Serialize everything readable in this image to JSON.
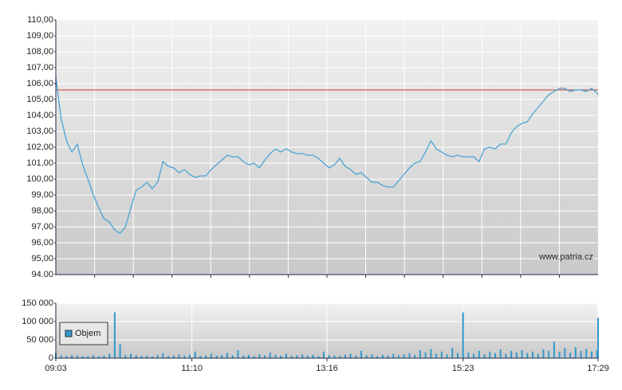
{
  "chart_data": [
    {
      "type": "line",
      "x": [
        "09:03",
        "09:08",
        "09:13",
        "09:18",
        "09:23",
        "09:28",
        "09:33",
        "09:38",
        "09:43",
        "09:48",
        "09:53",
        "09:58",
        "10:03",
        "10:08",
        "10:13",
        "10:18",
        "10:23",
        "10:28",
        "10:33",
        "10:38",
        "10:43",
        "10:48",
        "10:53",
        "10:58",
        "11:03",
        "11:08",
        "11:13",
        "11:18",
        "11:23",
        "11:28",
        "11:33",
        "11:38",
        "11:43",
        "11:48",
        "11:53",
        "11:58",
        "12:03",
        "12:08",
        "12:13",
        "12:18",
        "12:23",
        "12:28",
        "12:33",
        "12:38",
        "12:43",
        "12:48",
        "12:53",
        "12:58",
        "13:03",
        "13:08",
        "13:13",
        "13:18",
        "13:23",
        "13:28",
        "13:33",
        "13:38",
        "13:43",
        "13:48",
        "13:53",
        "13:58",
        "14:03",
        "14:08",
        "14:13",
        "14:18",
        "14:23",
        "14:28",
        "14:33",
        "14:38",
        "14:43",
        "14:48",
        "14:53",
        "14:58",
        "15:03",
        "15:08",
        "15:13",
        "15:18",
        "15:23",
        "15:28",
        "15:33",
        "15:38",
        "15:43",
        "15:48",
        "15:53",
        "15:58",
        "16:03",
        "16:08",
        "16:13",
        "16:18",
        "16:23",
        "16:28",
        "16:33",
        "16:38",
        "16:43",
        "16:48",
        "16:53",
        "16:58",
        "17:03",
        "17:08",
        "17:13",
        "17:18",
        "17:23",
        "17:28",
        "17:29"
      ],
      "values": [
        106.4,
        103.8,
        102.4,
        101.7,
        102.2,
        100.9,
        100,
        99,
        98.2,
        97.5,
        97.3,
        96.8,
        96.6,
        97,
        98.2,
        99.3,
        99.5,
        99.8,
        99.4,
        99.8,
        101.1,
        100.8,
        100.7,
        100.4,
        100.6,
        100.3,
        100.1,
        100.2,
        100.2,
        100.6,
        100.9,
        101.2,
        101.5,
        101.4,
        101.4,
        101.1,
        100.9,
        101,
        100.7,
        101.2,
        101.6,
        101.9,
        101.7,
        101.9,
        101.7,
        101.6,
        101.6,
        101.5,
        101.5,
        101.3,
        101,
        100.7,
        100.9,
        101.3,
        100.8,
        100.6,
        100.3,
        100.4,
        100.1,
        99.8,
        99.8,
        99.6,
        99.5,
        99.5,
        99.9,
        100.3,
        100.7,
        101,
        101.1,
        101.7,
        102.4,
        101.9,
        101.7,
        101.5,
        101.4,
        101.5,
        101.4,
        101.4,
        101.4,
        101.1,
        101.9,
        102,
        101.9,
        102.2,
        102.2,
        102.9,
        103.3,
        103.5,
        103.6,
        104.1,
        104.5,
        104.9,
        105.3,
        105.5,
        105.7,
        105.7,
        105.5,
        105.6,
        105.6,
        105.5,
        105.7,
        105.4,
        105.3
      ],
      "color": "#4aa3d5",
      "xlim": [
        "09:03",
        "17:29"
      ],
      "ylim": [
        94,
        110
      ],
      "yticks": [
        {
          "value": 94,
          "label": "94.00"
        },
        {
          "value": 95,
          "label": "95,00"
        },
        {
          "value": 96,
          "label": "96,00"
        },
        {
          "value": 97,
          "label": "97,00"
        },
        {
          "value": 98,
          "label": "98,00"
        },
        {
          "value": 99,
          "label": "99,00"
        },
        {
          "value": 100,
          "label": "100,00"
        },
        {
          "value": 101,
          "label": "101,00"
        },
        {
          "value": 102,
          "label": "102,00"
        },
        {
          "value": 103,
          "label": "103,00"
        },
        {
          "value": 104,
          "label": "104,00"
        },
        {
          "value": 105,
          "label": "105,00"
        },
        {
          "value": 106,
          "label": "106,00"
        },
        {
          "value": 107,
          "label": "107,00"
        },
        {
          "value": 108,
          "label": "108,00"
        },
        {
          "value": 109,
          "label": "109,00"
        },
        {
          "value": 110,
          "label": "110,00"
        }
      ],
      "grid": true,
      "reference_value": 105.6,
      "reference_color": "#c0392b",
      "annotation": "www.patria.cz"
    },
    {
      "type": "bar",
      "x": [
        "09:03",
        "09:08",
        "09:13",
        "09:18",
        "09:23",
        "09:28",
        "09:33",
        "09:38",
        "09:43",
        "09:48",
        "09:53",
        "09:58",
        "10:03",
        "10:08",
        "10:13",
        "10:18",
        "10:23",
        "10:28",
        "10:33",
        "10:38",
        "10:43",
        "10:48",
        "10:53",
        "10:58",
        "11:03",
        "11:08",
        "11:13",
        "11:18",
        "11:23",
        "11:28",
        "11:33",
        "11:38",
        "11:43",
        "11:48",
        "11:53",
        "11:58",
        "12:03",
        "12:08",
        "12:13",
        "12:18",
        "12:23",
        "12:28",
        "12:33",
        "12:38",
        "12:43",
        "12:48",
        "12:53",
        "12:58",
        "13:03",
        "13:08",
        "13:13",
        "13:18",
        "13:23",
        "13:28",
        "13:33",
        "13:38",
        "13:43",
        "13:48",
        "13:53",
        "13:58",
        "14:03",
        "14:08",
        "14:13",
        "14:18",
        "14:23",
        "14:28",
        "14:33",
        "14:38",
        "14:43",
        "14:48",
        "14:53",
        "14:58",
        "15:03",
        "15:08",
        "15:13",
        "15:18",
        "15:23",
        "15:28",
        "15:33",
        "15:38",
        "15:43",
        "15:48",
        "15:53",
        "15:58",
        "16:03",
        "16:08",
        "16:13",
        "16:18",
        "16:23",
        "16:28",
        "16:33",
        "16:38",
        "16:43",
        "16:48",
        "16:53",
        "16:58",
        "17:03",
        "17:08",
        "17:13",
        "17:18",
        "17:23",
        "17:28",
        "17:29"
      ],
      "series": [
        {
          "name": "Objem",
          "color": "#3399cc",
          "values": [
            15000,
            8000,
            6000,
            9000,
            7000,
            5000,
            6000,
            8000,
            5000,
            7000,
            12000,
            125000,
            38000,
            9000,
            12000,
            8000,
            6000,
            7000,
            5000,
            9000,
            14000,
            6000,
            8000,
            10000,
            7000,
            9000,
            18000,
            6000,
            8000,
            12000,
            7000,
            9000,
            14000,
            8000,
            22000,
            7000,
            9000,
            6000,
            11000,
            8000,
            15000,
            9000,
            7000,
            12000,
            6000,
            8000,
            10000,
            7000,
            9000,
            6000,
            18000,
            8000,
            7000,
            6000,
            9000,
            12000,
            7000,
            20000,
            8000,
            10000,
            6000,
            9000,
            7000,
            12000,
            8000,
            10000,
            14000,
            9000,
            22000,
            16000,
            25000,
            12000,
            18000,
            10000,
            28000,
            14000,
            125000,
            15000,
            12000,
            20000,
            10000,
            18000,
            14000,
            24000,
            12000,
            20000,
            16000,
            22000,
            14000,
            18000,
            12000,
            24000,
            20000,
            45000,
            18000,
            28000,
            15000,
            30000,
            20000,
            25000,
            18000,
            22000,
            110000
          ]
        }
      ],
      "xlim": [
        "09:03",
        "17:29"
      ],
      "xticks": [
        "09:03",
        "11:10",
        "13:16",
        "15:23",
        "17:29"
      ],
      "ylim": [
        0,
        150000
      ],
      "yticks": [
        0,
        {
          "value": 50000,
          "label": "50 000"
        },
        {
          "value": 100000,
          "label": "100 000"
        },
        {
          "value": 150000,
          "label": "150 000"
        }
      ],
      "grid": true,
      "legend": "upper left"
    }
  ]
}
